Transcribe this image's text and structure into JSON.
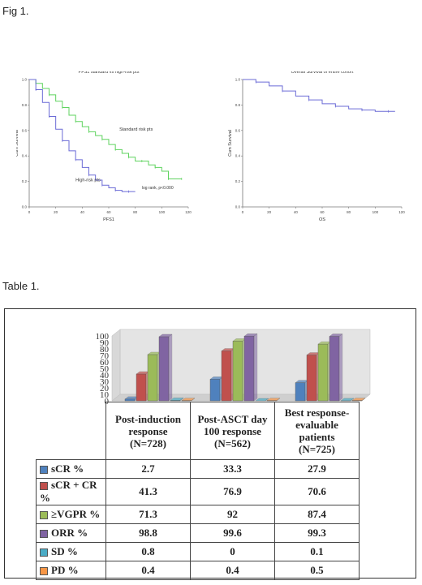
{
  "fig_label": "Fig 1.",
  "table_label": "Table 1.",
  "chart_data": [
    {
      "type": "line",
      "title": "PFS1 standard vs high-risk pts",
      "xlabel": "PFS1",
      "ylabel": "Cum Survival",
      "xlim": [
        0,
        120
      ],
      "ylim": [
        0,
        1.0
      ],
      "x_ticks": [
        "0",
        "20",
        "40",
        "60",
        "80",
        "100",
        "120"
      ],
      "y_ticks": [
        "0.0",
        "0.2",
        "0.4",
        "0.6",
        "0.8",
        "1.0"
      ],
      "series": [
        {
          "name": "Standard risk pts",
          "color": "#5fd35f",
          "x": [
            0,
            5,
            10,
            15,
            20,
            25,
            30,
            35,
            40,
            45,
            50,
            55,
            60,
            65,
            70,
            75,
            80,
            85,
            90,
            95,
            100,
            105,
            110,
            115
          ],
          "y": [
            1.0,
            0.97,
            0.93,
            0.88,
            0.83,
            0.78,
            0.72,
            0.67,
            0.63,
            0.59,
            0.56,
            0.53,
            0.49,
            0.45,
            0.42,
            0.39,
            0.36,
            0.36,
            0.33,
            0.31,
            0.28,
            0.22,
            0.22,
            0.22
          ]
        },
        {
          "name": "High-risk pts",
          "color": "#6b6bd6",
          "x": [
            0,
            5,
            10,
            15,
            20,
            25,
            30,
            35,
            40,
            45,
            50,
            55,
            60,
            65,
            70,
            75,
            80
          ],
          "y": [
            1.0,
            0.92,
            0.82,
            0.71,
            0.61,
            0.52,
            0.44,
            0.37,
            0.31,
            0.25,
            0.21,
            0.17,
            0.15,
            0.13,
            0.12,
            0.12,
            0.12
          ]
        }
      ],
      "annotation": "log rank, p<0.000"
    },
    {
      "type": "line",
      "title": "Overall Survival of entire cohort",
      "xlabel": "OS",
      "ylabel": "Cum Survival",
      "xlim": [
        0,
        120
      ],
      "ylim": [
        0,
        1.0
      ],
      "x_ticks": [
        "0",
        "20",
        "40",
        "60",
        "80",
        "100",
        "120"
      ],
      "y_ticks": [
        "0.0",
        "0.2",
        "0.4",
        "0.6",
        "0.8",
        "1.0"
      ],
      "series": [
        {
          "name": "",
          "color": "#6b6bd6",
          "x": [
            0,
            10,
            20,
            30,
            40,
            50,
            60,
            70,
            80,
            90,
            100,
            110,
            115
          ],
          "y": [
            1.0,
            0.98,
            0.95,
            0.91,
            0.87,
            0.84,
            0.81,
            0.79,
            0.77,
            0.76,
            0.75,
            0.75,
            0.75
          ]
        }
      ]
    },
    {
      "type": "bar",
      "style": "3d",
      "ylim": [
        0,
        100
      ],
      "y_ticks": [
        "0",
        "10",
        "20",
        "30",
        "40",
        "50",
        "60",
        "70",
        "80",
        "90",
        "100"
      ],
      "categories": [
        "Post-induction response (N=728)",
        "Post-ASCT day 100 response (N=562)",
        "Best response-evaluable patients (N=725)"
      ],
      "category_lines": [
        [
          "Post-induction",
          "response",
          "(N=728)"
        ],
        [
          "Post-ASCT day",
          "100 response",
          "(N=562)"
        ],
        [
          "Best response-",
          "evaluable",
          "patients",
          "(N=725)"
        ]
      ],
      "series": [
        {
          "name": "sCR %",
          "color": "#4f81bd",
          "values": [
            "2.7",
            "33.3",
            "27.9"
          ]
        },
        {
          "name": "sCR + CR %",
          "color": "#c0504d",
          "values": [
            "41.3",
            "76.9",
            "70.6"
          ]
        },
        {
          "name": "≥VGPR %",
          "color": "#9bbb59",
          "values": [
            "71.3",
            "92",
            "87.4"
          ]
        },
        {
          "name": "ORR %",
          "color": "#8064a2",
          "values": [
            "98.8",
            "99.6",
            "99.3"
          ]
        },
        {
          "name": "SD %",
          "color": "#4bacc6",
          "values": [
            "0.8",
            "0",
            "0.1"
          ]
        },
        {
          "name": "PD %",
          "color": "#f79646",
          "values": [
            "0.4",
            "0.4",
            "0.5"
          ]
        }
      ]
    }
  ]
}
